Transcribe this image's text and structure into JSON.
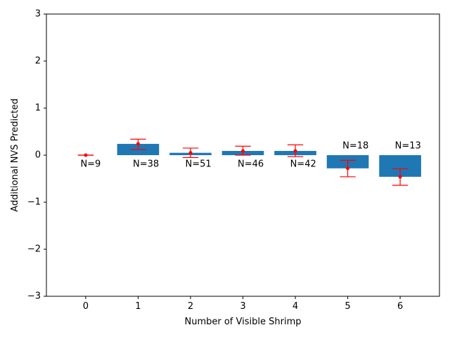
{
  "chart_data": {
    "type": "bar",
    "xlabel": "Number of Visible Shrimp",
    "ylabel": "Additional NVS Predicted",
    "x": [
      0,
      1,
      2,
      3,
      4,
      5,
      6
    ],
    "xticklabels": [
      "0",
      "1",
      "2",
      "3",
      "4",
      "5",
      "6"
    ],
    "values": [
      0.0,
      0.24,
      0.05,
      0.09,
      0.09,
      -0.28,
      -0.46
    ],
    "error_lower": [
      0.0,
      0.12,
      -0.05,
      0.0,
      -0.03,
      -0.46,
      -0.64
    ],
    "error_upper": [
      0.0,
      0.34,
      0.15,
      0.19,
      0.22,
      -0.11,
      -0.29
    ],
    "n_labels": [
      "N=9",
      "N=38",
      "N=51",
      "N=46",
      "N=42",
      "N=18",
      "N=13"
    ],
    "n_label_positions": [
      "below",
      "below",
      "below",
      "below",
      "below",
      "above",
      "above"
    ],
    "ylim": [
      -3,
      3
    ],
    "yticks": [
      -3,
      -2,
      -1,
      0,
      1,
      2,
      3
    ],
    "yticklabels": [
      "−3",
      "−2",
      "−1",
      "0",
      "1",
      "2",
      "3"
    ],
    "xlim": [
      -0.75,
      6.75
    ],
    "bar_color": "#1f77b4",
    "error_color": "#ff0000",
    "grid": false,
    "legend": "none"
  }
}
